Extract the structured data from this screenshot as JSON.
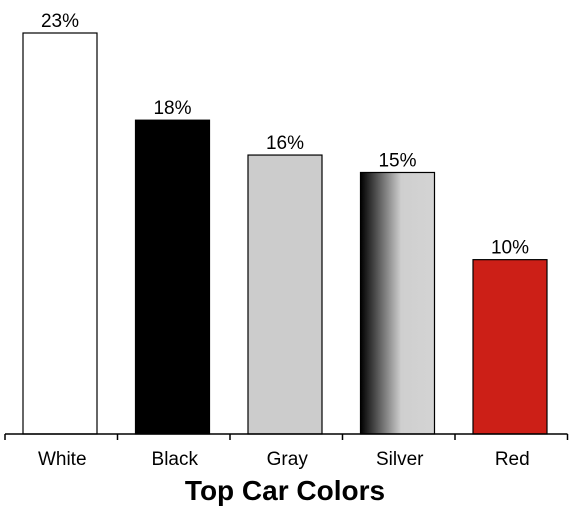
{
  "chart_data": {
    "type": "bar",
    "title": "Top Car Colors",
    "categories": [
      "White",
      "Black",
      "Gray",
      "Silver",
      "Red"
    ],
    "values": [
      23,
      18,
      16,
      15,
      10
    ],
    "value_labels": [
      "23%",
      "18%",
      "16%",
      "15%",
      "10%"
    ],
    "unit": "%",
    "xlabel": "",
    "ylabel": "",
    "ylim": [
      0,
      23
    ],
    "grid": false,
    "bar_colors": [
      "#ffffff",
      "#000000",
      "#cccccc",
      "silver-gradient",
      "#cc1f17"
    ]
  }
}
